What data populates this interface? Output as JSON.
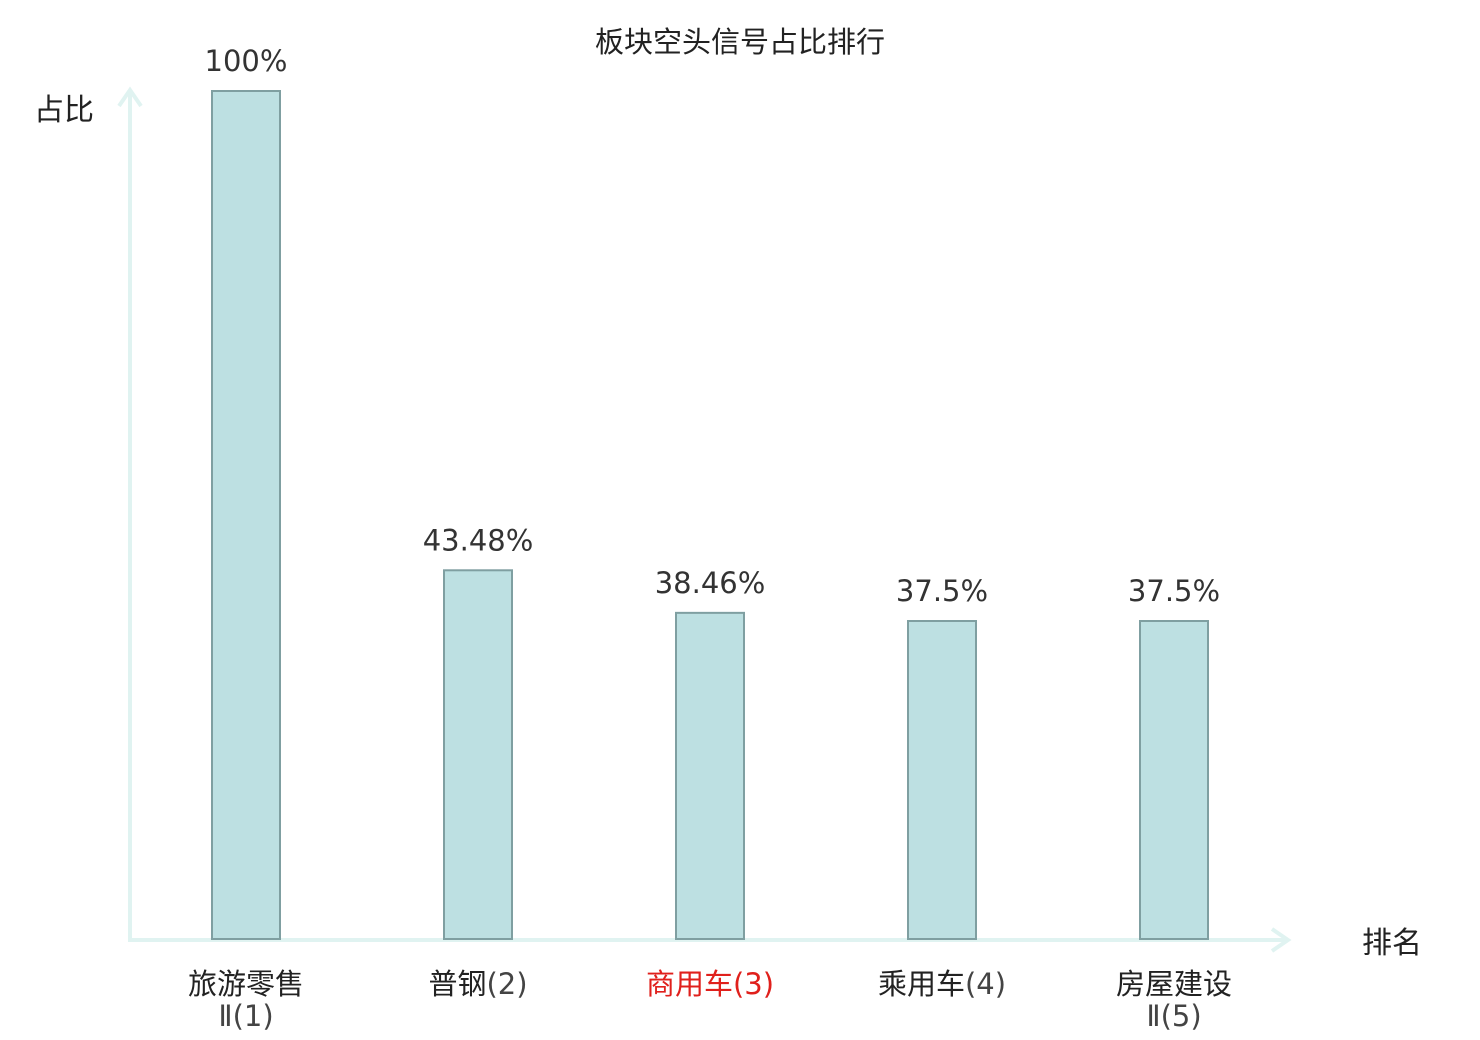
{
  "chart_data": {
    "type": "bar",
    "title": "板块空头信号占比排行",
    "ylabel": "占比",
    "xlabel": "排名",
    "ylim": [
      0,
      100
    ],
    "grid": false,
    "categories": [
      {
        "name": "旅游零售",
        "sub": "Ⅱ",
        "rank": "(1)",
        "highlight": false
      },
      {
        "name": "普钢",
        "sub": "",
        "rank": "(2)",
        "highlight": false
      },
      {
        "name": "商用车",
        "sub": "",
        "rank": "(3)",
        "highlight": true
      },
      {
        "name": "乘用车",
        "sub": "",
        "rank": "(4)",
        "highlight": false
      },
      {
        "name": "房屋建设",
        "sub": "Ⅱ",
        "rank": "(5)",
        "highlight": false
      }
    ],
    "values": [
      100,
      43.48,
      38.46,
      37.5,
      37.5
    ],
    "value_labels": [
      "100%",
      "43.48%",
      "38.46%",
      "37.5%",
      "37.5%"
    ],
    "colors": {
      "bar_fill": "#bde0e2",
      "bar_stroke": "#7f9fa1",
      "axis": "#e0f3f1",
      "highlight_text": "#e0201c",
      "text": "#222222"
    }
  }
}
